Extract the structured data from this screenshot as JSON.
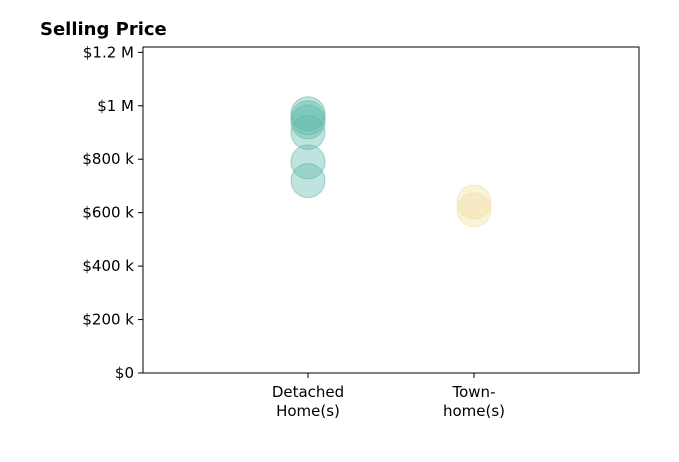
{
  "chart_data": {
    "type": "scatter",
    "title": "Selling Price",
    "xlabel": "",
    "ylabel": "",
    "categories": [
      [
        "Detached",
        "Home(s)"
      ],
      [
        "Town-",
        "home(s)"
      ]
    ],
    "ylim": [
      0,
      1220000
    ],
    "yticks": [
      {
        "value": 0,
        "label": "$0"
      },
      {
        "value": 200000,
        "label": "$200 k"
      },
      {
        "value": 400000,
        "label": "$400 k"
      },
      {
        "value": 600000,
        "label": "$600 k"
      },
      {
        "value": 800000,
        "label": "$800 k"
      },
      {
        "value": 1000000,
        "label": "$1 M"
      },
      {
        "value": 1200000,
        "label": "$1.2 M"
      }
    ],
    "series": [
      {
        "category_index": 0,
        "color": "#5fb8aa",
        "values": [
          720000,
          790000,
          900000,
          940000,
          955000,
          970000
        ]
      },
      {
        "category_index": 1,
        "color": "#f2dea0",
        "values": [
          610000,
          640000
        ]
      }
    ],
    "grid": false,
    "legend": "none"
  }
}
